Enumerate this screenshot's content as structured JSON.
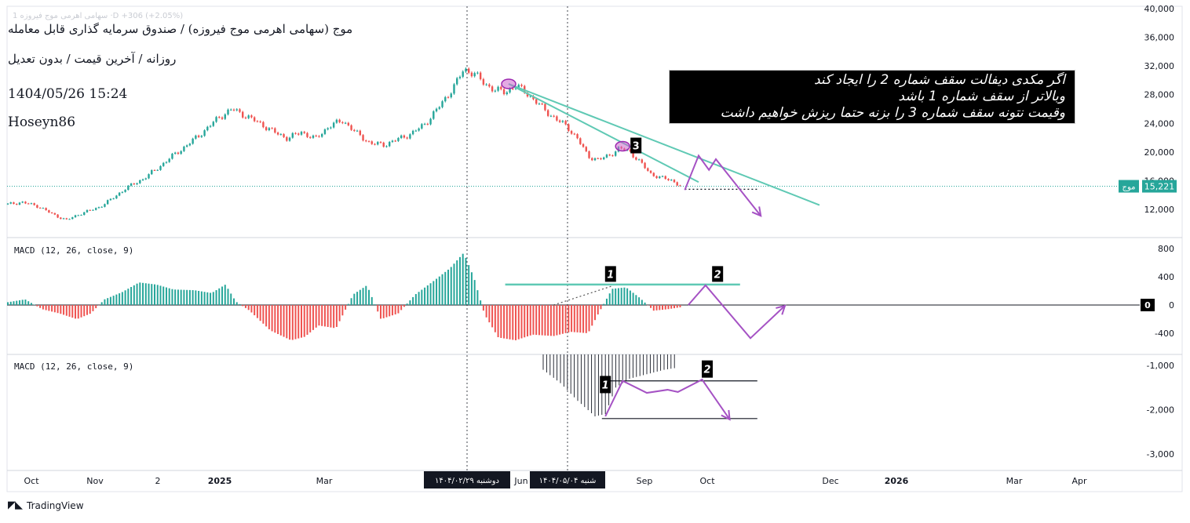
{
  "header": {
    "title": "موج (سهامی اهرمی موج فیروزه) / صندوق سرمایه گذاری قابل معامله",
    "subtitle": "روزانه / آخرین قیمت / بدون تعدیل",
    "datetime": "1404/05/26 15:24",
    "author": "Hoseyn86",
    "ghost_line": "1 سهامی اهرمی موج فیروزه ·D +306 (+2.05%)"
  },
  "annotation": {
    "lines": [
      "اگر مکدی دیفالت سقف شماره 2 را ایجاد کند",
      "وبالاتر از سقف شماره 1 باشد",
      "وقیمت نتونه سقف شماره 3 را بزنه حتما ریزش خواهیم داشت"
    ]
  },
  "brand": {
    "name": "TradingView",
    "icon": "tradingview-logo-icon"
  },
  "colors": {
    "bull": "#26a69a",
    "bear": "#ef5350",
    "trend": "#5fc9b4",
    "forecast": "#a552c4",
    "marker": "#cc66cc",
    "price_badge": "#26a69a"
  },
  "chart_data": [
    {
      "type": "candlestick",
      "timeframe": "daily",
      "x_ticks": [
        "Oct",
        "Nov",
        "2",
        "2025",
        "Mar",
        "Jun",
        "Sep",
        "Oct",
        "Dec",
        "2026",
        "Mar",
        "Apr"
      ],
      "y_ticks": [
        "40,000",
        "36,000",
        "32,000",
        "28,000",
        "24,000",
        "20,000",
        "16,000",
        "12,000"
      ],
      "ylim": [
        10000,
        40000
      ],
      "last_price": {
        "value": "15,221",
        "symbol": "موج"
      },
      "close_path": [
        {
          "x": 0.0,
          "y": 12700
        },
        {
          "x": 0.4,
          "y": 13000
        },
        {
          "x": 0.9,
          "y": 12400
        },
        {
          "x": 1.3,
          "y": 11300
        },
        {
          "x": 1.7,
          "y": 10500
        },
        {
          "x": 2.1,
          "y": 11400
        },
        {
          "x": 2.6,
          "y": 12200
        },
        {
          "x": 3.0,
          "y": 13400
        },
        {
          "x": 3.4,
          "y": 14900
        },
        {
          "x": 3.9,
          "y": 16200
        },
        {
          "x": 4.3,
          "y": 17600
        },
        {
          "x": 4.7,
          "y": 19200
        },
        {
          "x": 5.2,
          "y": 21000
        },
        {
          "x": 5.7,
          "y": 23000
        },
        {
          "x": 6.1,
          "y": 24800
        },
        {
          "x": 6.5,
          "y": 26000
        },
        {
          "x": 6.9,
          "y": 25000
        },
        {
          "x": 7.3,
          "y": 24000
        },
        {
          "x": 7.7,
          "y": 22800
        },
        {
          "x": 8.1,
          "y": 21900
        },
        {
          "x": 8.5,
          "y": 22800
        },
        {
          "x": 8.9,
          "y": 21800
        },
        {
          "x": 9.3,
          "y": 23600
        },
        {
          "x": 9.7,
          "y": 24400
        },
        {
          "x": 10.1,
          "y": 22600
        },
        {
          "x": 10.5,
          "y": 21200
        },
        {
          "x": 10.9,
          "y": 21000
        },
        {
          "x": 11.3,
          "y": 21800
        },
        {
          "x": 11.7,
          "y": 22600
        },
        {
          "x": 12.1,
          "y": 24000
        },
        {
          "x": 12.5,
          "y": 26400
        },
        {
          "x": 12.9,
          "y": 29000
        },
        {
          "x": 13.2,
          "y": 31500
        },
        {
          "x": 13.5,
          "y": 31000
        },
        {
          "x": 13.8,
          "y": 29500
        },
        {
          "x": 14.1,
          "y": 28700
        },
        {
          "x": 14.4,
          "y": 28300
        },
        {
          "x": 14.7,
          "y": 29300
        },
        {
          "x": 15.0,
          "y": 28300
        },
        {
          "x": 15.3,
          "y": 27000
        },
        {
          "x": 15.6,
          "y": 25600
        },
        {
          "x": 15.9,
          "y": 24500
        },
        {
          "x": 16.2,
          "y": 23500
        },
        {
          "x": 16.5,
          "y": 21800
        },
        {
          "x": 16.8,
          "y": 19400
        },
        {
          "x": 17.1,
          "y": 18900
        },
        {
          "x": 17.4,
          "y": 19500
        },
        {
          "x": 17.7,
          "y": 20500
        },
        {
          "x": 18.0,
          "y": 20100
        },
        {
          "x": 18.3,
          "y": 18600
        },
        {
          "x": 18.6,
          "y": 17000
        },
        {
          "x": 18.9,
          "y": 16400
        },
        {
          "x": 19.2,
          "y": 16100
        },
        {
          "x": 19.5,
          "y": 15221
        }
      ],
      "markers": [
        {
          "x": 14.5,
          "y": 29500,
          "label": ""
        },
        {
          "x": 17.8,
          "y": 20800,
          "label": "3"
        }
      ],
      "trendlines": [
        {
          "from": [
            14.5,
            29500
          ],
          "to": [
            23.5,
            12600
          ]
        },
        {
          "from": [
            14.5,
            29500
          ],
          "to": [
            20.0,
            15800
          ]
        }
      ],
      "support_line": {
        "from": [
          19.6,
          14800
        ],
        "to": [
          21.7,
          14800
        ]
      },
      "forecast_path": [
        {
          "x": 19.6,
          "y": 14700
        },
        {
          "x": 20.0,
          "y": 19500
        },
        {
          "x": 20.3,
          "y": 17500
        },
        {
          "x": 20.5,
          "y": 19000
        },
        {
          "x": 21.8,
          "y": 11100
        }
      ]
    },
    {
      "type": "histogram",
      "title": "MACD (12, 26, close, 9)",
      "y_ticks": [
        "800",
        "400",
        "0",
        "-400"
      ],
      "ylim": [
        -700,
        850
      ],
      "zero_label": "0",
      "histogram": [
        {
          "x": 0.0,
          "y": 40
        },
        {
          "x": 0.5,
          "y": 80
        },
        {
          "x": 1.0,
          "y": -60
        },
        {
          "x": 1.5,
          "y": -120
        },
        {
          "x": 2.0,
          "y": -200
        },
        {
          "x": 2.4,
          "y": -120
        },
        {
          "x": 2.8,
          "y": 80
        },
        {
          "x": 3.3,
          "y": 180
        },
        {
          "x": 3.8,
          "y": 320
        },
        {
          "x": 4.3,
          "y": 290
        },
        {
          "x": 4.8,
          "y": 220
        },
        {
          "x": 5.4,
          "y": 210
        },
        {
          "x": 5.9,
          "y": 170
        },
        {
          "x": 6.3,
          "y": 290
        },
        {
          "x": 6.6,
          "y": 50
        },
        {
          "x": 7.0,
          "y": -80
        },
        {
          "x": 7.6,
          "y": -360
        },
        {
          "x": 8.2,
          "y": -500
        },
        {
          "x": 8.6,
          "y": -450
        },
        {
          "x": 9.0,
          "y": -290
        },
        {
          "x": 9.5,
          "y": -330
        },
        {
          "x": 10.0,
          "y": 150
        },
        {
          "x": 10.4,
          "y": 280
        },
        {
          "x": 10.8,
          "y": -200
        },
        {
          "x": 11.3,
          "y": -120
        },
        {
          "x": 11.8,
          "y": 150
        },
        {
          "x": 12.3,
          "y": 330
        },
        {
          "x": 12.8,
          "y": 520
        },
        {
          "x": 13.2,
          "y": 740
        },
        {
          "x": 13.5,
          "y": 380
        },
        {
          "x": 13.8,
          "y": -130
        },
        {
          "x": 14.2,
          "y": -460
        },
        {
          "x": 14.7,
          "y": -500
        },
        {
          "x": 15.2,
          "y": -420
        },
        {
          "x": 15.8,
          "y": -440
        },
        {
          "x": 16.3,
          "y": -380
        },
        {
          "x": 16.8,
          "y": -400
        },
        {
          "x": 17.1,
          "y": -120
        },
        {
          "x": 17.5,
          "y": 230
        },
        {
          "x": 17.9,
          "y": 250
        },
        {
          "x": 18.3,
          "y": 100
        },
        {
          "x": 18.7,
          "y": -80
        },
        {
          "x": 19.1,
          "y": -60
        },
        {
          "x": 19.5,
          "y": -30
        }
      ],
      "level_line": {
        "from": [
          14.4,
          290
        ],
        "to": [
          21.2,
          290
        ]
      },
      "dotted_line": {
        "from": [
          15.8,
          0
        ],
        "to": [
          17.5,
          270
        ]
      },
      "labels": [
        {
          "x": 17.45,
          "y": 440,
          "text": "1"
        },
        {
          "x": 20.55,
          "y": 440,
          "text": "2"
        }
      ],
      "forecast_path": [
        {
          "x": 19.7,
          "y": 0
        },
        {
          "x": 20.2,
          "y": 280
        },
        {
          "x": 21.5,
          "y": -470
        },
        {
          "x": 22.5,
          "y": -10
        }
      ]
    },
    {
      "type": "histogram",
      "title": "MACD (12, 26, close, 9)",
      "y_ticks": [
        "-1,000",
        "-2,000",
        "-3,000"
      ],
      "ylim": [
        -3400,
        -950
      ],
      "histogram": [
        {
          "x": 15.5,
          "y": -1100
        },
        {
          "x": 16.0,
          "y": -1400
        },
        {
          "x": 16.5,
          "y": -1800
        },
        {
          "x": 17.0,
          "y": -2150
        },
        {
          "x": 17.3,
          "y": -2100
        },
        {
          "x": 17.6,
          "y": -1500
        },
        {
          "x": 18.0,
          "y": -1300
        },
        {
          "x": 18.5,
          "y": -1200
        },
        {
          "x": 19.0,
          "y": -1100
        },
        {
          "x": 19.4,
          "y": -1050
        }
      ],
      "level_lines": [
        {
          "from": [
            17.2,
            -1350
          ],
          "to": [
            21.7,
            -1350
          ]
        },
        {
          "from": [
            17.2,
            -2200
          ],
          "to": [
            21.7,
            -2200
          ]
        }
      ],
      "labels": [
        {
          "x": 17.3,
          "y": -1450,
          "text": "1"
        },
        {
          "x": 20.25,
          "y": -1100,
          "text": "2"
        }
      ],
      "forecast_path": [
        {
          "x": 17.3,
          "y": -2150
        },
        {
          "x": 17.8,
          "y": -1350
        },
        {
          "x": 18.5,
          "y": -1620
        },
        {
          "x": 19.1,
          "y": -1550
        },
        {
          "x": 19.4,
          "y": -1600
        },
        {
          "x": 20.1,
          "y": -1320
        },
        {
          "x": 20.9,
          "y": -2220
        }
      ]
    }
  ],
  "time_markers": [
    {
      "label": "دوشنبه ۱۴۰۴/۰۲/۲۹"
    },
    {
      "label": "شنبه ۱۴۰۴/۰۵/۰۴"
    }
  ]
}
